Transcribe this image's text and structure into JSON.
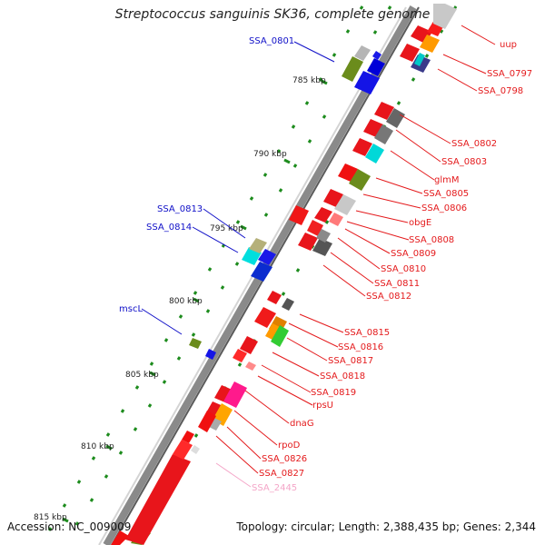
{
  "title": "Streptococcus sanguinis SK36, complete genome",
  "accession": "Accession: NC_009009",
  "topology": "Topology: circular; Length: 2,388,435 bp; Genes: 2,344",
  "colors": {
    "backbone": "#8a8a8a",
    "right_label": "#e41a1c",
    "left_label": "#1010c8",
    "faded_label": "#f4a6c8",
    "tick": "#1e8c1e"
  },
  "scale_labels": [
    "785 kbp",
    "790 kbp",
    "795 kbp",
    "800 kbp",
    "805 kbp",
    "810 kbp",
    "815 kbp"
  ],
  "left_labels": [
    "SSA_0801",
    "SSA_0813",
    "SSA_0814",
    "mscL"
  ],
  "right_labels": [
    "uup",
    "SSA_0797",
    "SSA_0798",
    "SSA_0802",
    "SSA_0803",
    "glmM",
    "SSA_0805",
    "SSA_0806",
    "obgE",
    "SSA_0808",
    "SSA_0809",
    "SSA_0810",
    "SSA_0811",
    "SSA_0812",
    "SSA_0815",
    "SSA_0816",
    "SSA_0817",
    "SSA_0818",
    "SSA_0819",
    "rpsU",
    "dnaG",
    "rpoD",
    "SSA_0826",
    "SSA_0827",
    "SSA_2445"
  ]
}
